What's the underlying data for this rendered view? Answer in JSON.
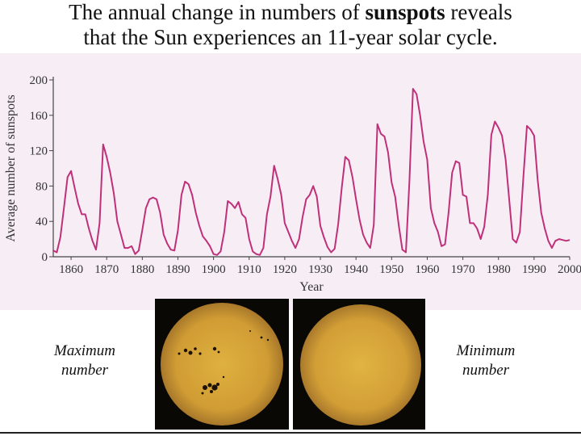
{
  "slide": {
    "title_pre": "The annual change in numbers of ",
    "title_bold": "sunspots",
    "title_post": " reveals",
    "title_line2": "that the Sun experiences an 11-year solar cycle."
  },
  "captions": {
    "max_line1": "Maximum",
    "max_line2": "number",
    "min_line1": "Minimum",
    "min_line2": "number"
  },
  "colors": {
    "series": "#c0307a",
    "panel": "#f6eef4",
    "sun": "#d8a83a"
  },
  "chart_data": {
    "type": "line",
    "title": "",
    "xlabel": "Year",
    "ylabel": "Average number of sunspots",
    "xlim": [
      1855,
      2000
    ],
    "ylim": [
      0,
      200
    ],
    "xticks": [
      1860,
      1870,
      1880,
      1890,
      1900,
      1910,
      1920,
      1930,
      1940,
      1950,
      1960,
      1970,
      1980,
      1990,
      2000
    ],
    "yticks": [
      0,
      40,
      80,
      120,
      160,
      200
    ],
    "grid": false,
    "series": [
      {
        "name": "Average number of sunspots",
        "x": [
          1855,
          1856,
          1857,
          1858,
          1859,
          1860,
          1861,
          1862,
          1863,
          1864,
          1865,
          1866,
          1867,
          1868,
          1869,
          1870,
          1871,
          1872,
          1873,
          1874,
          1875,
          1876,
          1877,
          1878,
          1879,
          1880,
          1881,
          1882,
          1883,
          1884,
          1885,
          1886,
          1887,
          1888,
          1889,
          1890,
          1891,
          1892,
          1893,
          1894,
          1895,
          1896,
          1897,
          1898,
          1899,
          1900,
          1901,
          1902,
          1903,
          1904,
          1905,
          1906,
          1907,
          1908,
          1909,
          1910,
          1911,
          1912,
          1913,
          1914,
          1915,
          1916,
          1917,
          1918,
          1919,
          1920,
          1921,
          1922,
          1923,
          1924,
          1925,
          1926,
          1927,
          1928,
          1929,
          1930,
          1931,
          1932,
          1933,
          1934,
          1935,
          1936,
          1937,
          1938,
          1939,
          1940,
          1941,
          1942,
          1943,
          1944,
          1945,
          1946,
          1947,
          1948,
          1949,
          1950,
          1951,
          1952,
          1953,
          1954,
          1955,
          1956,
          1957,
          1958,
          1959,
          1960,
          1961,
          1962,
          1963,
          1964,
          1965,
          1966,
          1967,
          1968,
          1969,
          1970,
          1971,
          1972,
          1973,
          1974,
          1975,
          1976,
          1977,
          1978,
          1979,
          1980,
          1981,
          1982,
          1983,
          1984,
          1985,
          1986,
          1987,
          1988,
          1989,
          1990,
          1991,
          1992,
          1993,
          1994,
          1995,
          1996,
          1997,
          1998,
          1999,
          2000
        ],
        "y": [
          7,
          5,
          22,
          55,
          90,
          97,
          78,
          60,
          48,
          48,
          32,
          18,
          8,
          38,
          127,
          113,
          95,
          72,
          40,
          25,
          10,
          10,
          12,
          3,
          7,
          30,
          55,
          65,
          67,
          65,
          50,
          25,
          15,
          8,
          7,
          30,
          70,
          85,
          82,
          70,
          50,
          35,
          23,
          18,
          12,
          3,
          2,
          6,
          28,
          63,
          60,
          55,
          62,
          48,
          44,
          20,
          6,
          3,
          2,
          10,
          48,
          68,
          103,
          88,
          70,
          38,
          28,
          18,
          10,
          20,
          45,
          65,
          70,
          80,
          68,
          35,
          22,
          11,
          5,
          9,
          37,
          78,
          113,
          109,
          90,
          65,
          42,
          25,
          16,
          10,
          36,
          150,
          139,
          136,
          118,
          84,
          68,
          36,
          8,
          5,
          86,
          190,
          184,
          160,
          130,
          110,
          55,
          38,
          28,
          12,
          14,
          50,
          95,
          108,
          106,
          70,
          68,
          38,
          38,
          32,
          20,
          34,
          70,
          138,
          153,
          146,
          137,
          110,
          65,
          20,
          16,
          28,
          90,
          148,
          144,
          137,
          87,
          50,
          32,
          18,
          10,
          18,
          20,
          19,
          18,
          19
        ]
      }
    ]
  }
}
